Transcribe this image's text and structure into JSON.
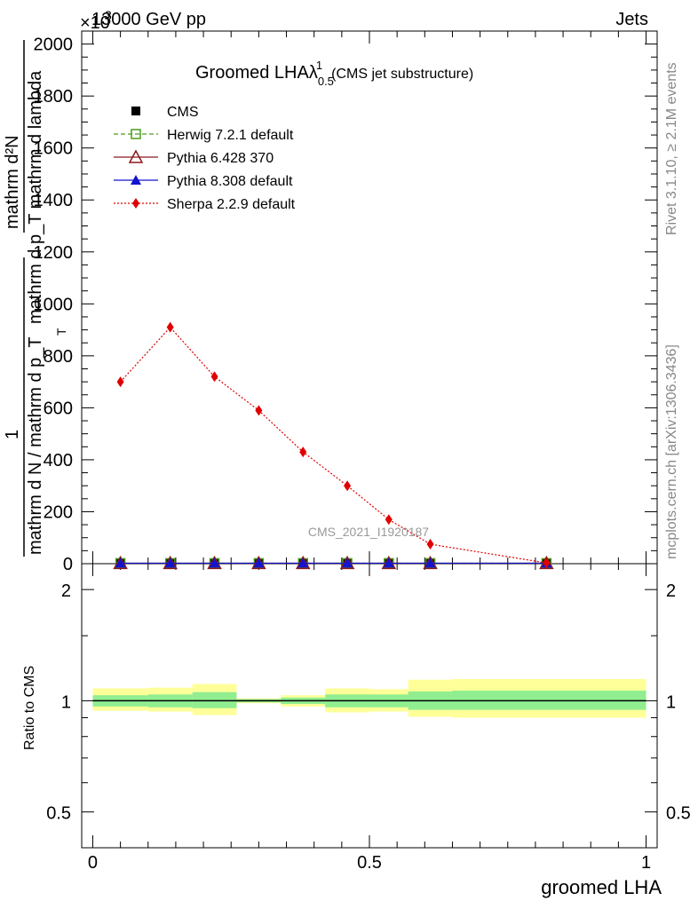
{
  "header": {
    "left": "13000 GeV pp",
    "right": "Jets",
    "exponent": "×10",
    "exponent_power": "3"
  },
  "side_labels": {
    "rivet": "Rivet 3.1.10, ≥ 2.1M events",
    "mcplots": "mcplots.cern.ch [arXiv:1306.3436]"
  },
  "watermark": "CMS_2021_I1920187",
  "main_ylabel": {
    "numerator_1": "mathrm d²N",
    "denominator_1": "mathrm d p_T mathrm d lambda",
    "prefix": "1",
    "denominator_2": "mathrm d N / mathrm d p_T",
    "sub_T": "T"
  },
  "ratio_ylabel": "Ratio to CMS",
  "xlabel": "groomed LHA",
  "chart_data": [
    {
      "type": "line",
      "title": "Groomed LHAλ",
      "title_sub": "0.5",
      "title_sup": "1",
      "title_suffix": "(CMS jet substructure)",
      "xlim": [
        -0.02,
        1.02
      ],
      "ylim": [
        0,
        2050
      ],
      "y_tick_values": [
        0,
        200,
        400,
        600,
        800,
        1000,
        1200,
        1400,
        1600,
        1800,
        2000
      ],
      "y_tick_labels": [
        "0",
        "200",
        "400",
        "600",
        "800",
        "1000",
        "1200",
        "1400",
        "1600",
        "1800",
        "2000"
      ],
      "legend_position": "top-left",
      "series": [
        {
          "name": "CMS",
          "color": "#000000",
          "marker": "square",
          "x": [
            0.05,
            0.14,
            0.22,
            0.3,
            0.38,
            0.46,
            0.535,
            0.61,
            0.82
          ],
          "y": [
            2,
            2,
            2,
            2,
            2,
            2,
            2,
            2,
            2
          ]
        },
        {
          "name": "Herwig 7.2.1 default",
          "color": "#4a9e1c",
          "marker": "open-square",
          "dash": "5,3",
          "x": [
            0.05,
            0.14,
            0.22,
            0.3,
            0.38,
            0.46,
            0.535,
            0.61,
            0.82
          ],
          "y": [
            2,
            2,
            2,
            2,
            2,
            2,
            2,
            2,
            2
          ]
        },
        {
          "name": "Pythia 6.428 370",
          "color": "#8b1a1a",
          "marker": "open-triangle",
          "dash": "",
          "x": [
            0.05,
            0.14,
            0.22,
            0.3,
            0.38,
            0.46,
            0.535,
            0.61,
            0.82
          ],
          "y": [
            2,
            2,
            2,
            2,
            2,
            2,
            2,
            2,
            2
          ]
        },
        {
          "name": "Pythia 8.308 default",
          "color": "#1414cc",
          "marker": "triangle",
          "dash": "",
          "x": [
            0.05,
            0.14,
            0.22,
            0.3,
            0.38,
            0.46,
            0.535,
            0.61,
            0.82
          ],
          "y": [
            2,
            2,
            2,
            2,
            2,
            2,
            2,
            2,
            2
          ]
        },
        {
          "name": "Sherpa 2.2.9 default",
          "color": "#e00000",
          "marker": "diamond",
          "dash": "2,2",
          "x": [
            0.05,
            0.14,
            0.22,
            0.3,
            0.38,
            0.46,
            0.535,
            0.61,
            0.82
          ],
          "y": [
            700,
            910,
            720,
            590,
            430,
            300,
            170,
            75,
            3
          ]
        }
      ]
    },
    {
      "type": "area",
      "ylabel": "Ratio to CMS",
      "xlabel": "groomed LHA",
      "xlim": [
        -0.02,
        1.02
      ],
      "scale": "log",
      "ylim": [
        0.4,
        2.35
      ],
      "y_tick_values": [
        0.5,
        1,
        2
      ],
      "y_tick_labels": [
        "0.5",
        "1",
        "2"
      ],
      "x_tick_values": [
        0,
        0.5,
        1
      ],
      "x_tick_labels": [
        "0",
        "0.5",
        "1"
      ],
      "bins": [
        {
          "lo": 0.0,
          "hi": 0.1,
          "inner": [
            0.965,
            1.035
          ],
          "outer": [
            0.94,
            1.08
          ]
        },
        {
          "lo": 0.1,
          "hi": 0.18,
          "inner": [
            0.96,
            1.04
          ],
          "outer": [
            0.935,
            1.085
          ]
        },
        {
          "lo": 0.18,
          "hi": 0.26,
          "inner": [
            0.955,
            1.055
          ],
          "outer": [
            0.915,
            1.11
          ]
        },
        {
          "lo": 0.26,
          "hi": 0.34,
          "inner": [
            0.99,
            1.01
          ],
          "outer": [
            0.985,
            1.015
          ]
        },
        {
          "lo": 0.34,
          "hi": 0.42,
          "inner": [
            0.98,
            1.02
          ],
          "outer": [
            0.965,
            1.035
          ]
        },
        {
          "lo": 0.42,
          "hi": 0.5,
          "inner": [
            0.96,
            1.04
          ],
          "outer": [
            0.93,
            1.08
          ]
        },
        {
          "lo": 0.5,
          "hi": 0.57,
          "inner": [
            0.96,
            1.04
          ],
          "outer": [
            0.935,
            1.075
          ]
        },
        {
          "lo": 0.57,
          "hi": 0.65,
          "inner": [
            0.945,
            1.06
          ],
          "outer": [
            0.905,
            1.14
          ]
        },
        {
          "lo": 0.65,
          "hi": 1.0,
          "inner": [
            0.945,
            1.065
          ],
          "outer": [
            0.9,
            1.145
          ]
        }
      ],
      "reference": 1
    }
  ]
}
